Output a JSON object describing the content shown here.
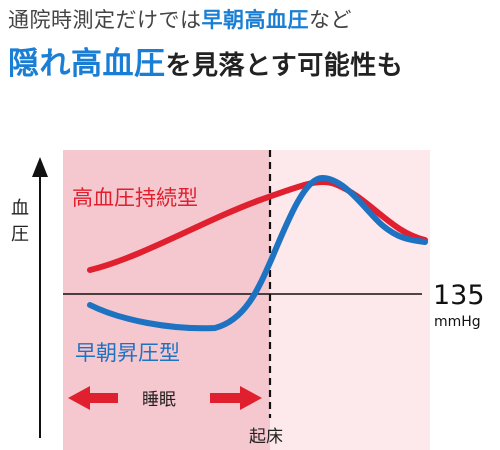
{
  "heading": {
    "line1_a": "通院時測定だけでは",
    "line1_b": "早朝高血圧",
    "line1_c": "など",
    "line2_a": "隠れ高血圧",
    "line2_b": "を見落とす可能性も"
  },
  "diagram": {
    "y_axis_label_1": "血",
    "y_axis_label_2": "圧",
    "sleep_label": "睡眠",
    "wake_label": "起床",
    "threshold_value": "135",
    "threshold_unit": "mmHg",
    "series": [
      {
        "name": "高血圧持続型",
        "color": "#e0202e"
      },
      {
        "name": "早朝昇圧型",
        "color": "#1e72c2"
      }
    ],
    "colors": {
      "sleep_region": "#f5c7cf",
      "awake_region": "#fde8ec",
      "arrow": "#e0202e",
      "axis": "#111111"
    }
  }
}
